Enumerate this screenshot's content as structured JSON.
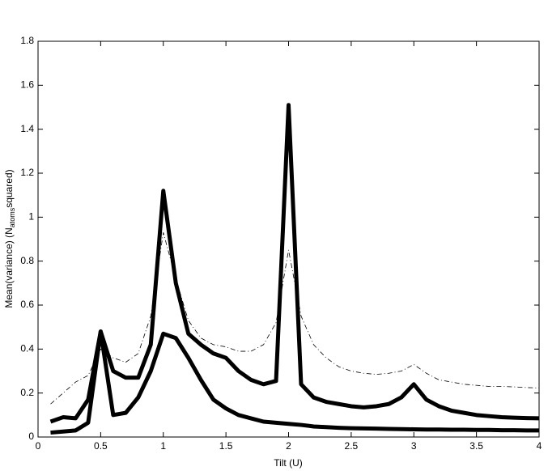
{
  "chart_data": {
    "type": "line",
    "xlabel": "Tilt (U)",
    "ylabel": {
      "main": "Mean(variance) (N",
      "sub": "atoms",
      "end": "squared)"
    },
    "x": [
      0.1,
      0.2,
      0.3,
      0.4,
      0.5,
      0.6,
      0.7,
      0.8,
      0.9,
      1.0,
      1.1,
      1.2,
      1.3,
      1.4,
      1.5,
      1.6,
      1.7,
      1.8,
      1.9,
      2.0,
      2.1,
      2.2,
      2.3,
      2.4,
      2.5,
      2.6,
      2.7,
      2.8,
      2.9,
      3.0,
      3.1,
      3.2,
      3.3,
      3.4,
      3.5,
      3.6,
      3.7,
      3.8,
      3.9,
      4.0
    ],
    "series": [
      {
        "color": "#000000",
        "line_width": 5,
        "dash": "solid",
        "values": [
          0.07,
          0.09,
          0.085,
          0.17,
          0.48,
          0.3,
          0.27,
          0.27,
          0.42,
          1.12,
          0.7,
          0.47,
          0.42,
          0.38,
          0.36,
          0.3,
          0.26,
          0.24,
          0.255,
          1.51,
          0.24,
          0.18,
          0.16,
          0.15,
          0.14,
          0.135,
          0.14,
          0.15,
          0.18,
          0.24,
          0.17,
          0.14,
          0.12,
          0.11,
          0.1,
          0.095,
          0.09,
          0.088,
          0.086,
          0.085
        ]
      },
      {
        "color": "#000000",
        "line_width": 5,
        "dash": "solid",
        "values": [
          0.02,
          0.025,
          0.03,
          0.065,
          0.48,
          0.1,
          0.11,
          0.18,
          0.3,
          0.47,
          0.45,
          0.36,
          0.26,
          0.17,
          0.13,
          0.1,
          0.085,
          0.07,
          0.065,
          0.06,
          0.055,
          0.048,
          0.045,
          0.042,
          0.04,
          0.039,
          0.038,
          0.037,
          0.036,
          0.035,
          0.034,
          0.034,
          0.033,
          0.033,
          0.032,
          0.032,
          0.031,
          0.031,
          0.03,
          0.03
        ]
      },
      {
        "color": "#000000",
        "line_width": 0.8,
        "dash": "dashdot",
        "values": [
          0.15,
          0.2,
          0.25,
          0.28,
          0.4,
          0.36,
          0.34,
          0.38,
          0.55,
          0.93,
          0.72,
          0.53,
          0.45,
          0.42,
          0.41,
          0.39,
          0.39,
          0.42,
          0.52,
          0.85,
          0.55,
          0.42,
          0.36,
          0.32,
          0.3,
          0.29,
          0.285,
          0.29,
          0.3,
          0.33,
          0.29,
          0.26,
          0.25,
          0.24,
          0.235,
          0.23,
          0.23,
          0.228,
          0.225,
          0.223
        ]
      }
    ],
    "xlim": [
      0,
      4
    ],
    "xticks": [
      0,
      0.5,
      1,
      1.5,
      2,
      2.5,
      3,
      3.5,
      4
    ],
    "ylim": [
      0,
      1.8
    ],
    "yticks": [
      0,
      0.2,
      0.4,
      0.6,
      0.8,
      1,
      1.2,
      1.4,
      1.6,
      1.8
    ],
    "grid": false,
    "box": true
  }
}
